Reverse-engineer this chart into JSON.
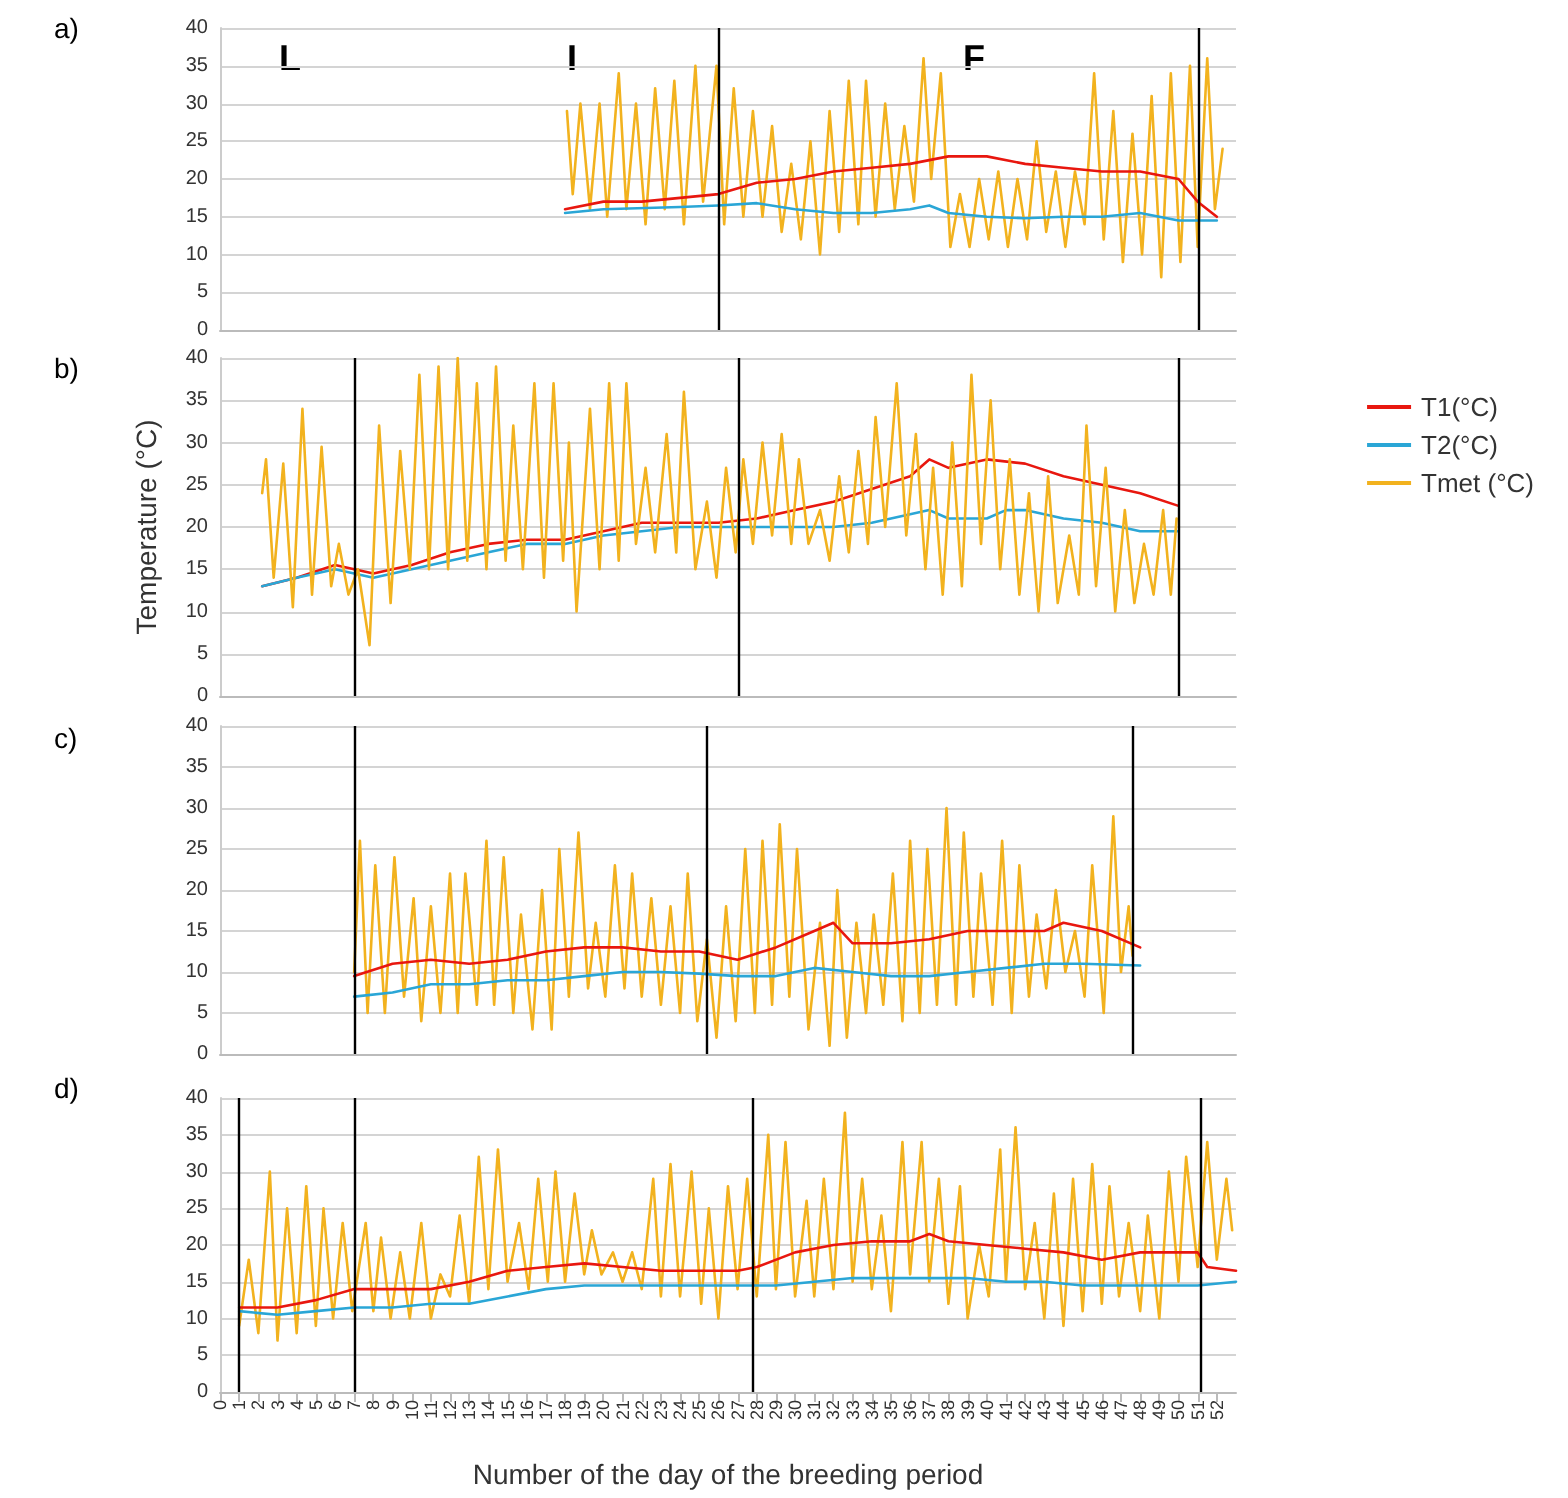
{
  "chart_data": [
    {
      "type": "line",
      "title": "a)",
      "xlim": [
        0,
        53
      ],
      "ylim": [
        0,
        40
      ],
      "yticks": [
        0,
        5,
        10,
        15,
        20,
        25,
        30,
        35,
        40
      ],
      "tick_labels": "y",
      "grid": "y",
      "legend": false,
      "marker": "none",
      "line_style": "solid",
      "ref_lines": [
        {
          "axis": "x",
          "value": 26,
          "label": null,
          "color": "#000000"
        },
        {
          "axis": "x",
          "value": 51,
          "label": null,
          "color": "#000000"
        }
      ],
      "annotations": [
        "L",
        "I",
        "F"
      ],
      "series": [
        {
          "color": "#f2b21e",
          "x": [
            18.1,
            18.4,
            18.8,
            19.3,
            19.8,
            20.2,
            20.8,
            21.2,
            21.7,
            22.2,
            22.7,
            23.2,
            23.7,
            24.2,
            24.8,
            25.2,
            25.9,
            26.3,
            26.8,
            27.3,
            27.8,
            28.3,
            28.8,
            29.3,
            29.8,
            30.3,
            30.8,
            31.3,
            31.8,
            32.3,
            32.8,
            33.3,
            33.7,
            34.2,
            34.7,
            35.2,
            35.7,
            36.2,
            36.7,
            37.1,
            37.6,
            38.1,
            38.6,
            39.1,
            39.6,
            40.1,
            40.6,
            41.1,
            41.6,
            42.1,
            42.6,
            43.1,
            43.6,
            44.1,
            44.6,
            45.1,
            45.6,
            46.1,
            46.6,
            47.1,
            47.6,
            48.1,
            48.6,
            49.1,
            49.6,
            50.1,
            50.6,
            51.0,
            51.5,
            51.9,
            52.3
          ],
          "values": [
            29,
            18,
            30,
            16,
            30,
            15,
            34,
            16,
            30,
            14,
            32,
            16,
            33,
            14,
            35,
            17,
            35,
            14,
            32,
            15,
            29,
            15,
            27,
            13,
            22,
            12,
            25,
            10,
            29,
            13,
            33,
            14,
            33,
            15,
            30,
            16,
            27,
            17,
            36,
            20,
            34,
            11,
            18,
            11,
            20,
            12,
            21,
            11,
            20,
            12,
            25,
            13,
            21,
            11,
            21,
            14,
            34,
            12,
            29,
            9,
            26,
            10,
            31,
            7,
            34,
            9,
            35,
            11,
            36,
            16,
            24
          ]
        },
        {
          "color": "#e8170f",
          "x": [
            18,
            20,
            22,
            24,
            26,
            28,
            30,
            32,
            34,
            36,
            38,
            40,
            42,
            44,
            46,
            48,
            50,
            51,
            52
          ],
          "values": [
            16,
            17,
            17,
            17.5,
            18,
            19.5,
            20,
            21,
            21.5,
            22,
            23,
            23,
            22,
            21.5,
            21,
            21,
            20,
            17,
            15
          ]
        },
        {
          "color": "#2aa6d6",
          "x": [
            18,
            20,
            24,
            26,
            28,
            30,
            32,
            34,
            36,
            37,
            38,
            40,
            42,
            44,
            46,
            48,
            50,
            52
          ],
          "values": [
            15.5,
            16,
            16.3,
            16.5,
            16.8,
            16,
            15.5,
            15.5,
            16,
            16.5,
            15.5,
            15,
            14.8,
            15,
            15,
            15.5,
            14.5,
            14.5
          ]
        }
      ]
    },
    {
      "type": "line",
      "title": "b)",
      "ylabel": "Temperature (°C)",
      "xlim": [
        0,
        53
      ],
      "ylim": [
        0,
        40
      ],
      "yticks": [
        0,
        5,
        10,
        15,
        20,
        25,
        30,
        35,
        40
      ],
      "tick_labels": "y",
      "grid": "y",
      "legend": "right",
      "marker": "none",
      "line_style": "solid",
      "ref_lines": [
        {
          "axis": "x",
          "value": 7,
          "label": null,
          "color": "#000000"
        },
        {
          "axis": "x",
          "value": 27,
          "label": null,
          "color": "#000000"
        },
        {
          "axis": "x",
          "value": 50,
          "label": null,
          "color": "#000000"
        }
      ],
      "series": [
        {
          "name": "T1(°C)",
          "color": "#e8170f",
          "x": [
            2.2,
            4,
            6,
            7,
            8,
            10,
            12,
            14,
            16,
            18,
            20,
            22,
            24,
            26,
            28,
            30,
            32,
            34,
            36,
            37,
            38,
            40,
            42,
            44,
            46,
            48,
            50
          ],
          "values": [
            13,
            14,
            15.5,
            15,
            14.5,
            15.5,
            17,
            18,
            18.5,
            18.5,
            19.5,
            20.5,
            20.5,
            20.5,
            21,
            22,
            23,
            24.5,
            26,
            28,
            27,
            28,
            27.5,
            26,
            25,
            24,
            22.5
          ]
        },
        {
          "name": "T2(°C)",
          "color": "#2aa6d6",
          "x": [
            2.2,
            4,
            6,
            7,
            8,
            10,
            12,
            14,
            16,
            18,
            20,
            22,
            24,
            26,
            28,
            30,
            32,
            34,
            36,
            37,
            38,
            40,
            41,
            42,
            44,
            46,
            48,
            50
          ],
          "values": [
            13,
            14,
            15,
            14.5,
            14,
            15,
            16,
            17,
            18,
            18,
            19,
            19.5,
            20,
            20,
            20,
            20,
            20,
            20.5,
            21.5,
            22,
            21,
            21,
            22,
            22,
            21,
            20.5,
            19.5,
            19.5
          ]
        },
        {
          "name": "Tmet (°C)",
          "color": "#f2b21e",
          "x": [
            2.2,
            2.4,
            2.8,
            3.3,
            3.8,
            4.3,
            4.8,
            5.3,
            5.8,
            6.2,
            6.7,
            7.2,
            7.8,
            8.3,
            8.9,
            9.4,
            9.9,
            10.4,
            10.9,
            11.4,
            11.9,
            12.4,
            12.9,
            13.4,
            13.9,
            14.4,
            14.9,
            15.3,
            15.8,
            16.4,
            16.9,
            17.4,
            17.9,
            18.2,
            18.6,
            19.3,
            19.8,
            20.3,
            20.8,
            21.2,
            21.7,
            22.2,
            22.7,
            23.3,
            23.8,
            24.2,
            24.8,
            25.4,
            25.9,
            26.4,
            26.9,
            27.3,
            27.8,
            28.3,
            28.8,
            29.3,
            29.8,
            30.2,
            30.7,
            31.3,
            31.8,
            32.3,
            32.8,
            33.3,
            33.8,
            34.2,
            34.7,
            35.3,
            35.8,
            36.3,
            36.8,
            37.2,
            37.7,
            38.2,
            38.7,
            39.2,
            39.7,
            40.2,
            40.7,
            41.2,
            41.7,
            42.2,
            42.7,
            43.2,
            43.7,
            44.3,
            44.8,
            45.2,
            45.7,
            46.2,
            46.7,
            47.2,
            47.7,
            48.2,
            48.7,
            49.2,
            49.6,
            49.9
          ],
          "values": [
            24,
            28,
            14,
            27.5,
            10.5,
            34,
            12,
            29.5,
            13,
            18,
            12,
            15,
            6,
            32,
            11,
            29,
            15,
            38,
            15,
            39,
            15,
            40,
            16,
            37,
            15,
            39,
            16,
            32,
            15,
            37,
            14,
            37,
            16,
            30,
            10,
            34,
            15,
            37,
            16,
            37,
            18,
            27,
            17,
            31,
            17,
            36,
            15,
            23,
            14,
            27,
            17,
            28,
            18,
            30,
            19,
            31,
            18,
            28,
            18,
            22,
            16,
            26,
            17,
            29,
            18,
            33,
            20,
            37,
            19,
            31,
            15,
            27,
            12,
            30,
            13,
            38,
            18,
            35,
            15,
            28,
            12,
            24,
            10,
            26,
            11,
            19,
            12,
            32,
            13,
            27,
            10,
            22,
            11,
            18,
            12,
            22,
            12,
            21
          ]
        }
      ]
    },
    {
      "type": "line",
      "title": "c)",
      "xlim": [
        0,
        53
      ],
      "ylim": [
        0,
        40
      ],
      "yticks": [
        0,
        5,
        10,
        15,
        20,
        25,
        30,
        35,
        40
      ],
      "tick_labels": "y",
      "grid": "y",
      "legend": false,
      "marker": "none",
      "line_style": "solid",
      "ref_lines": [
        {
          "axis": "x",
          "value": 7,
          "label": null,
          "color": "#000000"
        },
        {
          "axis": "x",
          "value": 25.4,
          "label": null,
          "color": "#000000"
        },
        {
          "axis": "x",
          "value": 47.6,
          "label": null,
          "color": "#000000"
        }
      ],
      "series": [
        {
          "color": "#f2b21e",
          "x": [
            7.0,
            7.3,
            7.7,
            8.1,
            8.6,
            9.1,
            9.6,
            10.1,
            10.5,
            11.0,
            11.5,
            12.0,
            12.4,
            12.8,
            13.4,
            13.9,
            14.3,
            14.8,
            15.3,
            15.7,
            16.3,
            16.8,
            17.3,
            17.7,
            18.2,
            18.7,
            19.2,
            19.6,
            20.1,
            20.6,
            21.1,
            21.5,
            22.0,
            22.5,
            23.0,
            23.5,
            24.0,
            24.4,
            24.9,
            25.4,
            25.9,
            26.4,
            26.9,
            27.4,
            27.9,
            28.3,
            28.8,
            29.2,
            29.7,
            30.1,
            30.7,
            31.3,
            31.8,
            32.2,
            32.7,
            33.2,
            33.7,
            34.1,
            34.6,
            35.1,
            35.6,
            36.0,
            36.5,
            36.9,
            37.4,
            37.9,
            38.4,
            38.8,
            39.3,
            39.7,
            40.3,
            40.8,
            41.3,
            41.7,
            42.2,
            42.6,
            43.1,
            43.6,
            44.1,
            44.6,
            45.1,
            45.5,
            46.1,
            46.6,
            47.0,
            47.4,
            47.6
          ],
          "values": [
            10,
            26,
            5,
            23,
            5,
            24,
            7,
            19,
            4,
            18,
            5,
            22,
            5,
            22,
            6,
            26,
            6,
            24,
            5,
            17,
            3,
            20,
            3,
            25,
            7,
            27,
            8,
            16,
            7,
            23,
            8,
            22,
            7,
            19,
            6,
            18,
            5,
            22,
            4,
            14,
            2,
            18,
            4,
            25,
            5,
            26,
            6,
            28,
            7,
            25,
            3,
            16,
            1,
            20,
            2,
            16,
            5,
            17,
            6,
            22,
            4,
            26,
            5,
            25,
            6,
            30,
            6,
            27,
            7,
            22,
            6,
            26,
            5,
            23,
            7,
            17,
            8,
            20,
            10,
            15,
            7,
            23,
            5,
            29,
            10,
            18,
            12
          ]
        },
        {
          "color": "#e8170f",
          "x": [
            7,
            9,
            11,
            13,
            15,
            17,
            19,
            21,
            23,
            25,
            27,
            29,
            31,
            32,
            33,
            35,
            37,
            39,
            41,
            43,
            44,
            46,
            48
          ],
          "values": [
            9.5,
            11,
            11.5,
            11,
            11.5,
            12.5,
            13,
            13,
            12.5,
            12.5,
            11.5,
            13,
            15,
            16,
            13.5,
            13.5,
            14,
            15,
            15,
            15,
            16,
            15,
            13
          ]
        },
        {
          "color": "#2aa6d6",
          "x": [
            7,
            9,
            11,
            13,
            15,
            17,
            19,
            21,
            23,
            25,
            27,
            29,
            31,
            33,
            35,
            37,
            39,
            41,
            43,
            45,
            48
          ],
          "values": [
            7,
            7.5,
            8.5,
            8.5,
            9,
            9,
            9.5,
            10,
            10,
            9.8,
            9.5,
            9.5,
            10.5,
            10,
            9.5,
            9.5,
            10,
            10.5,
            11,
            11,
            10.8
          ]
        }
      ]
    },
    {
      "type": "line",
      "title": "d)",
      "xlabel": "Number of the day of the breeding period",
      "xlim": [
        0,
        53
      ],
      "ylim": [
        0,
        40
      ],
      "yticks": [
        0,
        5,
        10,
        15,
        20,
        25,
        30,
        35,
        40
      ],
      "xticks": [
        0,
        1,
        2,
        3,
        4,
        5,
        6,
        7,
        8,
        9,
        10,
        11,
        12,
        13,
        14,
        15,
        16,
        17,
        18,
        19,
        20,
        21,
        22,
        23,
        24,
        25,
        26,
        27,
        28,
        29,
        30,
        31,
        32,
        33,
        34,
        35,
        36,
        37,
        38,
        39,
        40,
        41,
        42,
        43,
        44,
        45,
        46,
        47,
        48,
        49,
        50,
        51,
        52
      ],
      "grid": "y",
      "legend": false,
      "marker": "none",
      "line_style": "solid",
      "ref_lines": [
        {
          "axis": "x",
          "value": 1,
          "label": null,
          "color": "#000000"
        },
        {
          "axis": "x",
          "value": 7,
          "label": null,
          "color": "#000000"
        },
        {
          "axis": "x",
          "value": 27.8,
          "label": null,
          "color": "#000000"
        },
        {
          "axis": "x",
          "value": 51.2,
          "label": null,
          "color": "#000000"
        }
      ],
      "series": [
        {
          "color": "#f2b21e",
          "x": [
            1.0,
            1.5,
            2.0,
            2.6,
            3.0,
            3.5,
            4.0,
            4.5,
            5.0,
            5.4,
            5.9,
            6.4,
            6.9,
            7.6,
            8.0,
            8.4,
            8.9,
            9.4,
            9.9,
            10.5,
            11.0,
            11.5,
            12.0,
            12.5,
            13.0,
            13.5,
            14.0,
            14.5,
            15.0,
            15.6,
            16.1,
            16.6,
            17.1,
            17.5,
            18.0,
            18.5,
            19.0,
            19.4,
            19.9,
            20.5,
            21.0,
            21.5,
            22.0,
            22.6,
            23.0,
            23.5,
            24.0,
            24.6,
            25.1,
            25.5,
            26.0,
            26.5,
            27.0,
            27.5,
            28.0,
            28.6,
            29.0,
            29.5,
            30.0,
            30.6,
            31.0,
            31.5,
            32.0,
            32.6,
            33.0,
            33.5,
            34.0,
            34.5,
            35.0,
            35.6,
            36.0,
            36.6,
            37.0,
            37.5,
            38.0,
            38.6,
            39.0,
            39.6,
            40.1,
            40.7,
            41.0,
            41.5,
            42.0,
            42.5,
            43.0,
            43.5,
            44.0,
            44.5,
            45.0,
            45.5,
            46.0,
            46.4,
            46.9,
            47.4,
            48.0,
            48.4,
            49.0,
            49.5,
            50.0,
            50.4,
            51.0,
            51.5,
            52.0,
            52.5,
            52.8
          ],
          "values": [
            9,
            18,
            8,
            30,
            7,
            25,
            8,
            28,
            9,
            25,
            10,
            23,
            11,
            23,
            11,
            21,
            10,
            19,
            10,
            23,
            10,
            16,
            13,
            24,
            12,
            32,
            14,
            33,
            15,
            23,
            14,
            29,
            15,
            30,
            15,
            27,
            16,
            22,
            16,
            19,
            15,
            19,
            14,
            29,
            13,
            31,
            13,
            30,
            12,
            25,
            10,
            28,
            14,
            29,
            13,
            35,
            14,
            34,
            13,
            26,
            13,
            29,
            14,
            38,
            15,
            29,
            14,
            24,
            11,
            34,
            16,
            34,
            15,
            29,
            12,
            28,
            10,
            20,
            13,
            33,
            15,
            36,
            14,
            23,
            10,
            27,
            9,
            29,
            11,
            31,
            12,
            28,
            13,
            23,
            11,
            24,
            10,
            30,
            15,
            32,
            17,
            34,
            18,
            29,
            22
          ]
        },
        {
          "color": "#e8170f",
          "x": [
            1,
            3,
            5,
            7,
            9,
            11,
            13,
            15,
            17,
            19,
            21,
            23,
            25,
            27,
            28,
            30,
            32,
            34,
            36,
            37,
            38,
            40,
            42,
            44,
            46,
            48,
            50,
            51,
            51.5,
            53
          ],
          "values": [
            11.5,
            11.5,
            12.5,
            14,
            14,
            14,
            15,
            16.5,
            17,
            17.5,
            17,
            16.5,
            16.5,
            16.5,
            17,
            19,
            20,
            20.5,
            20.5,
            21.5,
            20.5,
            20,
            19.5,
            19,
            18,
            19,
            19,
            19,
            17,
            16.5
          ]
        },
        {
          "color": "#2aa6d6",
          "x": [
            1,
            3,
            5,
            7,
            9,
            11,
            13,
            15,
            17,
            19,
            21,
            23,
            25,
            27,
            29,
            31,
            33,
            35,
            37,
            39,
            41,
            43,
            45,
            47,
            49,
            51,
            53
          ],
          "values": [
            11,
            10.5,
            11,
            11.5,
            11.5,
            12,
            12,
            13,
            14,
            14.5,
            14.5,
            14.5,
            14.5,
            14.5,
            14.5,
            15,
            15.5,
            15.5,
            15.5,
            15.5,
            15,
            15,
            14.5,
            14.5,
            14.5,
            14.5,
            15
          ]
        }
      ]
    }
  ]
}
